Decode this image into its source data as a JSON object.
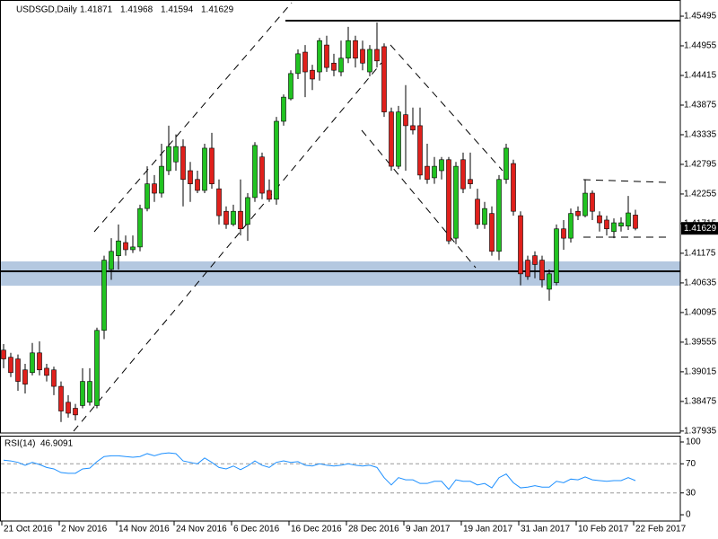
{
  "chart_data": [
    {
      "type": "candlestick",
      "title": "USDSGD,Daily",
      "categories": [
        "21 Oct 2016",
        null,
        null,
        null,
        null,
        null,
        null,
        null,
        "2 Nov 2016",
        null,
        null,
        null,
        null,
        null,
        null,
        null,
        "14 Nov 2016",
        null,
        null,
        null,
        null,
        null,
        null,
        null,
        "24 Nov 2016",
        null,
        null,
        null,
        null,
        null,
        null,
        null,
        "6 Dec 2016",
        null,
        null,
        null,
        null,
        null,
        null,
        null,
        "16 Dec 2016",
        null,
        null,
        null,
        null,
        null,
        null,
        null,
        "28 Dec 2016",
        null,
        null,
        null,
        null,
        null,
        null,
        null,
        "9 Jan 2017",
        null,
        null,
        null,
        null,
        null,
        null,
        null,
        "19 Jan 2017",
        null,
        null,
        null,
        null,
        null,
        null,
        null,
        "31 Jan 2017",
        null,
        null,
        null,
        null,
        null,
        null,
        null,
        "10 Feb 2017",
        null,
        null,
        null,
        null,
        null,
        null,
        null,
        "22 Feb 2017"
      ],
      "open": [
        1.3941,
        1.3928,
        1.3925,
        1.3905,
        1.39,
        1.3936,
        1.3908,
        1.3905,
        1.3875,
        1.3846,
        1.3835,
        1.384,
        1.3846,
        1.384,
        1.3977,
        1.4088,
        1.4113,
        1.4137,
        1.4124,
        1.4129,
        1.4199,
        1.4244,
        1.4227,
        1.4268,
        1.4284,
        1.4312,
        1.4268,
        1.4252,
        1.4232,
        1.4309,
        1.4235,
        1.4194,
        1.417,
        1.4194,
        1.417,
        1.4219,
        1.4293,
        1.4232,
        1.4216,
        1.4358,
        1.4399,
        1.4445,
        1.4484,
        1.4451,
        1.4448,
        1.4497,
        1.4464,
        1.4448,
        1.4473,
        1.4505,
        1.4489,
        1.4448,
        1.4489,
        1.4494,
        1.4375,
        1.4276,
        1.437,
        1.435,
        1.435,
        1.4276,
        1.4255,
        1.4268,
        1.4288,
        1.4145,
        1.4288,
        1.4252,
        1.4216,
        1.417,
        1.419,
        1.4121,
        1.4252,
        1.4281,
        1.4186,
        1.4105,
        1.4113,
        1.4105,
        1.4052,
        1.4064,
        1.4162,
        1.4145,
        1.4194,
        1.4186,
        1.4227,
        1.4186,
        1.4178,
        1.4157,
        1.4167,
        1.4167,
        1.41871
      ],
      "high": [
        1.3952,
        1.3936,
        1.3933,
        1.3916,
        1.3954,
        1.3957,
        1.3916,
        1.3911,
        1.3884,
        1.3859,
        1.3843,
        1.3908,
        1.3908,
        1.3982,
        1.4113,
        1.4145,
        1.417,
        1.415,
        1.415,
        1.4206,
        1.4276,
        1.426,
        1.4317,
        1.435,
        1.4334,
        1.4325,
        1.4284,
        1.4268,
        1.4317,
        1.4337,
        1.4252,
        1.4203,
        1.4206,
        1.4252,
        1.4227,
        1.432,
        1.4301,
        1.4252,
        1.4366,
        1.4407,
        1.4451,
        1.4489,
        1.4497,
        1.4461,
        1.451,
        1.4514,
        1.4481,
        1.4505,
        1.453,
        1.4514,
        1.4505,
        1.4497,
        1.4538,
        1.45,
        1.4383,
        1.4386,
        1.4424,
        1.4383,
        1.4383,
        1.4317,
        1.4293,
        1.4293,
        1.4293,
        1.4284,
        1.4301,
        1.4301,
        1.4235,
        1.4211,
        1.4203,
        1.426,
        1.4317,
        1.4288,
        1.4194,
        1.4113,
        1.4121,
        1.4113,
        1.4088,
        1.417,
        1.4178,
        1.4199,
        1.4203,
        1.4252,
        1.4232,
        1.4194,
        1.4186,
        1.4181,
        1.4183,
        1.4222,
        1.41968
      ],
      "low": [
        1.3908,
        1.3892,
        1.3867,
        1.3862,
        1.3895,
        1.3895,
        1.3884,
        1.3859,
        1.381,
        1.3818,
        1.3813,
        1.3835,
        1.384,
        1.3835,
        1.3961,
        1.4069,
        1.4088,
        1.4113,
        1.4118,
        1.4121,
        1.4194,
        1.4211,
        1.4219,
        1.426,
        1.4268,
        1.4203,
        1.4211,
        1.4227,
        1.4227,
        1.4235,
        1.417,
        1.4162,
        1.4167,
        1.415,
        1.414,
        1.4211,
        1.4216,
        1.4211,
        1.4206,
        1.435,
        1.4396,
        1.4435,
        1.4402,
        1.4415,
        1.4432,
        1.4448,
        1.444,
        1.444,
        1.4464,
        1.4456,
        1.4451,
        1.444,
        1.4456,
        1.4366,
        1.4268,
        1.4271,
        1.4268,
        1.4334,
        1.4252,
        1.4244,
        1.4244,
        1.4252,
        1.4134,
        1.4134,
        1.4227,
        1.4235,
        1.4162,
        1.4162,
        1.4113,
        1.4105,
        1.4244,
        1.4186,
        1.4059,
        1.4069,
        1.4072,
        1.4055,
        1.4031,
        1.4059,
        1.4124,
        1.4137,
        1.4178,
        1.4183,
        1.4178,
        1.4157,
        1.415,
        1.4145,
        1.4157,
        1.416,
        1.41594
      ],
      "close": [
        1.3925,
        1.39,
        1.3884,
        1.3879,
        1.3936,
        1.3905,
        1.3895,
        1.3875,
        1.383,
        1.3826,
        1.3823,
        1.3884,
        1.3884,
        1.3977,
        1.4105,
        1.4121,
        1.414,
        1.4124,
        1.4129,
        1.4199,
        1.4244,
        1.4227,
        1.4276,
        1.4312,
        1.4312,
        1.4252,
        1.4244,
        1.4232,
        1.4309,
        1.4244,
        1.4186,
        1.417,
        1.4194,
        1.4162,
        1.4219,
        1.4314,
        1.4227,
        1.4216,
        1.4358,
        1.4402,
        1.4445,
        1.4481,
        1.4448,
        1.4435,
        1.4505,
        1.4456,
        1.4451,
        1.4473,
        1.4505,
        1.4473,
        1.4464,
        1.4489,
        1.4468,
        1.4375,
        1.4276,
        1.4375,
        1.435,
        1.4342,
        1.426,
        1.4252,
        1.4276,
        1.4288,
        1.414,
        1.4276,
        1.4235,
        1.4244,
        1.417,
        1.4199,
        1.4121,
        1.4252,
        1.4309,
        1.4194,
        1.408,
        1.4075,
        1.4097,
        1.4069,
        1.408,
        1.4162,
        1.4145,
        1.419,
        1.4186,
        1.4227,
        1.4194,
        1.4173,
        1.4162,
        1.4173,
        1.4173,
        1.4191,
        1.41629
      ],
      "ylim": [
        1.379,
        1.4579
      ],
      "yticks": [
        1.45495,
        1.44955,
        1.44415,
        1.43875,
        1.43335,
        1.42795,
        1.42255,
        1.41715,
        1.41175,
        1.40635,
        1.40095,
        1.39555,
        1.39015,
        1.38475,
        1.37935
      ],
      "up_color": "#21c321",
      "down_color": "#e0201c"
    },
    {
      "type": "line",
      "title": "RSI(14)",
      "values": [
        75,
        74,
        72,
        68,
        72,
        69,
        65,
        63,
        58,
        57,
        57,
        63,
        64,
        73,
        80,
        81,
        81,
        80,
        79,
        80,
        84,
        81,
        84,
        85,
        84,
        74,
        72,
        70,
        78,
        72,
        65,
        63,
        67,
        62,
        67,
        74,
        68,
        65,
        72,
        74,
        72,
        73,
        68,
        67,
        70,
        68,
        67,
        68,
        70,
        68,
        67,
        68,
        65,
        51,
        41,
        51,
        48,
        48,
        43,
        43,
        46,
        46,
        35,
        48,
        46,
        46,
        41,
        43,
        37,
        51,
        56,
        44,
        37,
        38,
        40,
        38,
        38,
        46,
        44,
        49,
        48,
        52,
        48,
        47,
        46,
        47,
        47,
        51,
        46.9091
      ],
      "color": "#1e90ff",
      "ylim": [
        -8.6,
        107.4
      ],
      "yticks": [
        100,
        70,
        30,
        0
      ],
      "levels": [
        70,
        30
      ]
    }
  ]
}
